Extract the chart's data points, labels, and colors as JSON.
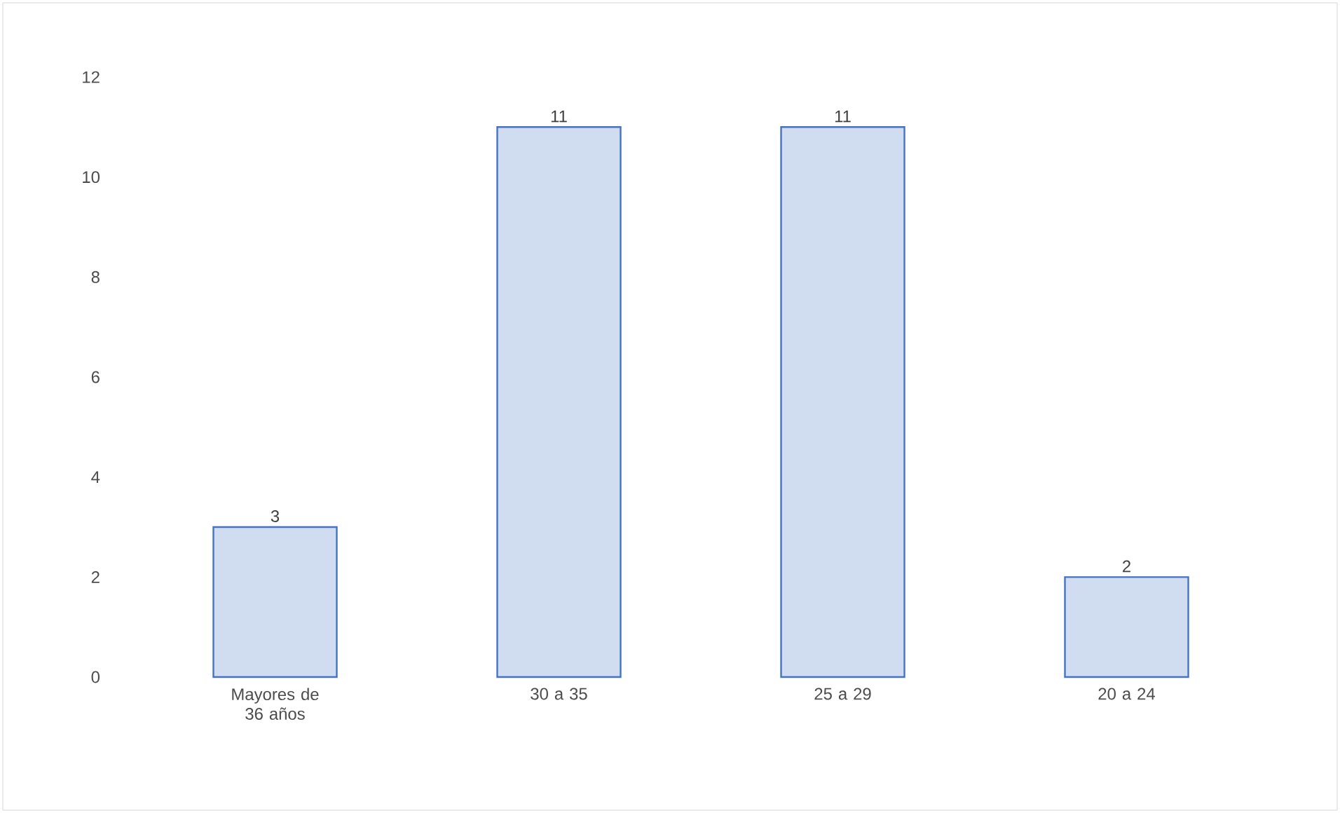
{
  "chart_data": {
    "type": "bar",
    "categories": [
      "Mayores de 36 años",
      "30 a 35",
      "25 a 29",
      "20 a 24"
    ],
    "values": [
      3,
      11,
      11,
      2
    ],
    "color": "#4472c4",
    "ylim": [
      0,
      12
    ],
    "yticks": [
      0,
      2,
      4,
      6,
      8,
      10,
      12
    ],
    "data_labels": true,
    "grid": false
  }
}
